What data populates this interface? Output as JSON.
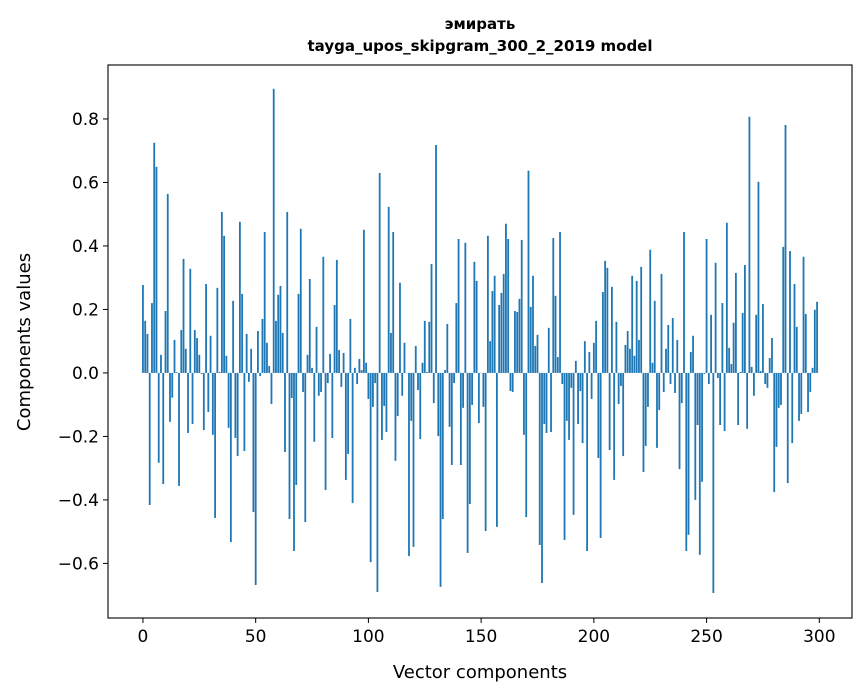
{
  "chart_data": {
    "type": "bar",
    "title": [
      "эмирать",
      "tayga_upos_skipgram_300_2_2019 model"
    ],
    "xlabel": "Vector components",
    "ylabel": "Components values",
    "xlim": [
      -15.5,
      314.5
    ],
    "ylim": [
      -0.772,
      0.97
    ],
    "xticks": [
      0,
      50,
      100,
      150,
      200,
      250,
      300
    ],
    "xtick_labels": [
      "0",
      "50",
      "100",
      "150",
      "200",
      "250",
      "300"
    ],
    "yticks": [
      -0.6,
      -0.4,
      -0.2,
      0.0,
      0.2,
      0.4,
      0.6,
      0.8
    ],
    "ytick_labels": [
      "−0.6",
      "−0.4",
      "−0.2",
      "0.0",
      "0.2",
      "0.4",
      "0.6",
      "0.8"
    ],
    "grid": false,
    "bar_color": "#1f77b4",
    "values": [
      0.277,
      0.164,
      0.123,
      -0.416,
      0.22,
      0.725,
      0.649,
      -0.283,
      0.057,
      -0.35,
      0.195,
      0.564,
      -0.154,
      -0.078,
      0.104,
      0.002,
      -0.356,
      0.135,
      0.359,
      0.076,
      -0.189,
      0.328,
      -0.161,
      0.135,
      0.11,
      0.057,
      -0.003,
      -0.18,
      0.28,
      -0.123,
      0.117,
      -0.195,
      -0.457,
      0.268,
      0.003,
      0.507,
      0.432,
      0.054,
      -0.173,
      -0.533,
      0.227,
      -0.205,
      -0.262,
      0.476,
      0.249,
      -0.246,
      0.123,
      -0.028,
      0.076,
      -0.438,
      -0.668,
      0.132,
      -0.01,
      0.17,
      0.444,
      0.095,
      0.022,
      -0.098,
      0.895,
      0.164,
      0.246,
      0.274,
      0.126,
      -0.249,
      0.507,
      -0.46,
      -0.079,
      -0.561,
      -0.353,
      0.249,
      0.454,
      -0.06,
      -0.47,
      0.057,
      0.296,
      0.016,
      -0.217,
      0.145,
      -0.072,
      -0.06,
      0.366,
      -0.369,
      -0.032,
      0.06,
      -0.205,
      0.214,
      0.356,
      0.072,
      -0.044,
      0.063,
      -0.337,
      -0.255,
      0.17,
      -0.41,
      0.016,
      -0.035,
      0.044,
      0.009,
      0.451,
      0.032,
      -0.082,
      -0.596,
      -0.107,
      -0.032,
      -0.69,
      0.63,
      -0.211,
      -0.104,
      -0.186,
      0.523,
      0.126,
      0.444,
      -0.277,
      -0.136,
      0.284,
      -0.072,
      0.095,
      0.0,
      -0.577,
      -0.151,
      -0.548,
      0.085,
      -0.054,
      -0.208,
      0.032,
      0.164,
      0.003,
      0.161,
      0.343,
      -0.095,
      0.718,
      -0.199,
      -0.674,
      -0.46,
      0.009,
      0.154,
      -0.17,
      -0.29,
      -0.032,
      0.22,
      0.422,
      -0.29,
      -0.11,
      0.41,
      -0.567,
      -0.413,
      -0.101,
      0.35,
      0.29,
      -0.158,
      0.0,
      -0.107,
      -0.498,
      0.432,
      0.1,
      0.258,
      0.306,
      -0.485,
      0.214,
      0.252,
      0.312,
      0.47,
      0.422,
      -0.057,
      -0.06,
      0.195,
      0.192,
      0.233,
      0.419,
      -0.195,
      -0.454,
      0.637,
      0.208,
      0.306,
      0.085,
      0.12,
      -0.542,
      -0.662,
      -0.161,
      -0.189,
      0.142,
      -0.186,
      0.425,
      0.243,
      0.05,
      0.444,
      -0.035,
      -0.526,
      -0.151,
      -0.211,
      -0.047,
      -0.447,
      0.038,
      -0.161,
      -0.057,
      -0.221,
      0.1,
      -0.561,
      0.066,
      -0.082,
      0.095,
      0.164,
      -0.268,
      -0.52,
      0.255,
      0.353,
      0.331,
      -0.243,
      0.271,
      -0.337,
      0.161,
      -0.098,
      -0.041,
      -0.262,
      0.088,
      0.132,
      0.076,
      0.306,
      0.054,
      0.29,
      0.104,
      0.334,
      -0.312,
      -0.23,
      -0.107,
      0.388,
      0.032,
      0.227,
      -0.236,
      -0.117,
      0.312,
      -0.06,
      0.076,
      0.151,
      -0.035,
      0.173,
      -0.063,
      0.104,
      -0.303,
      -0.095,
      0.444,
      -0.561,
      -0.51,
      0.066,
      0.117,
      -0.4,
      -0.164,
      -0.573,
      -0.343,
      -0.003,
      0.422,
      -0.035,
      0.183,
      -0.693,
      0.347,
      -0.016,
      -0.164,
      0.22,
      -0.183,
      0.473,
      0.079,
      0.028,
      0.158,
      0.315,
      -0.164,
      0.003,
      0.189,
      0.34,
      -0.176,
      0.807,
      0.019,
      -0.072,
      0.183,
      0.602,
      0.006,
      0.217,
      -0.035,
      -0.047,
      0.047,
      0.11,
      -0.375,
      -0.233,
      -0.11,
      -0.101,
      0.397,
      0.781,
      -0.347,
      0.384,
      -0.221,
      0.28,
      0.145,
      -0.151,
      -0.129,
      0.366,
      0.186,
      -0.123,
      -0.06,
      0.016,
      0.199,
      0.224
    ]
  }
}
